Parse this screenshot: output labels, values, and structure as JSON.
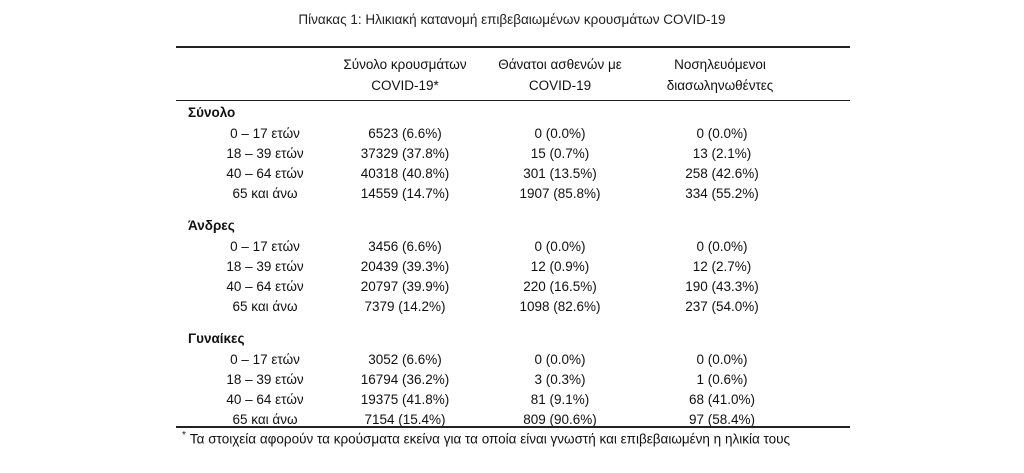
{
  "caption": "Πίνακας 1: Ηλικιακή κατανομή επιβεβαιωμένων κρουσμάτων COVID-19",
  "headers": [
    {
      "line1": "Σύνολο κρουσμάτων",
      "line2": "COVID-19*"
    },
    {
      "line1": "Θάνατοι ασθενών με",
      "line2": "COVID-19"
    },
    {
      "line1": "Νοσηλευόμενοι",
      "line2": "διασωληνωθέντες"
    }
  ],
  "groups": [
    {
      "title": "Σύνολο",
      "rows": [
        {
          "label": "0 – 17 ετών",
          "cases": "6523 (6.6%)",
          "deaths": "0 (0.0%)",
          "intubated": "0 (0.0%)"
        },
        {
          "label": "18 – 39 ετών",
          "cases": "37329 (37.8%)",
          "deaths": "15 (0.7%)",
          "intubated": "13 (2.1%)"
        },
        {
          "label": "40 – 64 ετών",
          "cases": "40318 (40.8%)",
          "deaths": "301 (13.5%)",
          "intubated": "258 (42.6%)"
        },
        {
          "label": "65 και άνω",
          "cases": "14559 (14.7%)",
          "deaths": "1907 (85.8%)",
          "intubated": "334 (55.2%)"
        }
      ]
    },
    {
      "title": "Άνδρες",
      "rows": [
        {
          "label": "0 – 17 ετών",
          "cases": "3456 (6.6%)",
          "deaths": "0 (0.0%)",
          "intubated": "0 (0.0%)"
        },
        {
          "label": "18 – 39 ετών",
          "cases": "20439 (39.3%)",
          "deaths": "12 (0.9%)",
          "intubated": "12 (2.7%)"
        },
        {
          "label": "40 – 64 ετών",
          "cases": "20797 (39.9%)",
          "deaths": "220 (16.5%)",
          "intubated": "190 (43.3%)"
        },
        {
          "label": "65 και άνω",
          "cases": "7379 (14.2%)",
          "deaths": "1098 (82.6%)",
          "intubated": "237 (54.0%)"
        }
      ]
    },
    {
      "title": "Γυναίκες",
      "rows": [
        {
          "label": "0 – 17 ετών",
          "cases": "3052 (6.6%)",
          "deaths": "0 (0.0%)",
          "intubated": "0 (0.0%)"
        },
        {
          "label": "18 – 39 ετών",
          "cases": "16794 (36.2%)",
          "deaths": "3 (0.3%)",
          "intubated": "1 (0.6%)"
        },
        {
          "label": "40 – 64 ετών",
          "cases": "19375 (41.8%)",
          "deaths": "81 (9.1%)",
          "intubated": "68 (41.0%)"
        },
        {
          "label": "65 και άνω",
          "cases": "7154 (15.4%)",
          "deaths": "809 (90.6%)",
          "intubated": "97 (58.4%)"
        }
      ]
    }
  ],
  "footnote": {
    "mark": "*",
    "text": "Τα στοιχεία αφορούν τα κρούσματα εκείνα για τα οποία είναι γνωστή και επιβεβαιωμένη η ηλικία τους"
  }
}
